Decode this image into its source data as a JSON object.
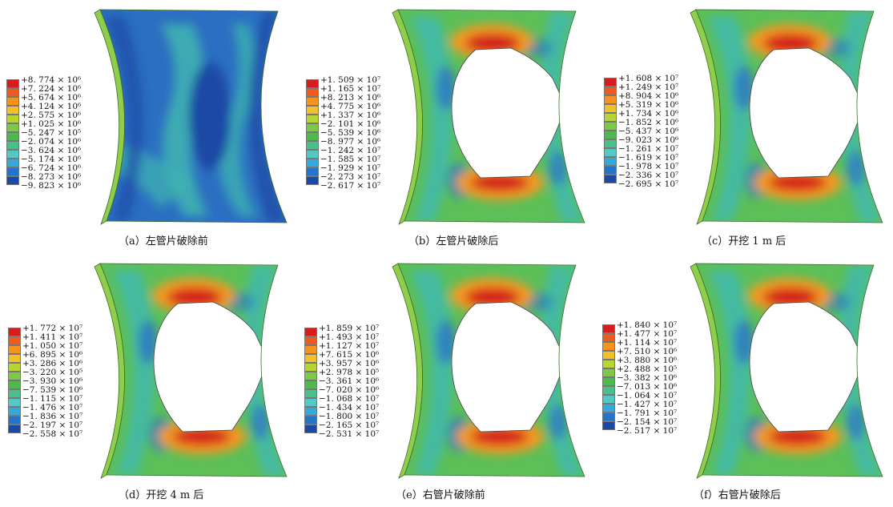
{
  "legend_colors": [
    "#d81b1b",
    "#ef5a1e",
    "#f7921f",
    "#f2c12a",
    "#b7d535",
    "#7cc943",
    "#4fb84f",
    "#46c18a",
    "#52c9c4",
    "#34a9de",
    "#2474cc",
    "#1a4aa8"
  ],
  "panels": [
    {
      "id": "a",
      "caption": "（a）左管片破除前",
      "hole": false,
      "legend": [
        "+8. 774 × 10⁶",
        "+7. 224 × 10⁶",
        "+5. 674 × 10⁶",
        "+4. 124 × 10⁶",
        "+2. 575 × 10⁶",
        "+1. 025 × 10⁶",
        "−5. 247 × 10⁵",
        "−2. 074 × 10⁶",
        "−3. 624 × 10⁶",
        "−5. 174 × 10⁶",
        "−6. 724 × 10⁶",
        "−8. 273 × 10⁶",
        "−9. 823 × 10⁶"
      ]
    },
    {
      "id": "b",
      "caption": "（b）左管片破除后",
      "hole": true,
      "legend": [
        "+1. 509 × 10⁷",
        "+1. 165 × 10⁷",
        "+8. 213 × 10⁶",
        "+4. 775 × 10⁶",
        "+1. 337 × 10⁶",
        "−2. 101 × 10⁶",
        "−5. 539 × 10⁶",
        "−8. 977 × 10⁶",
        "−1. 242 × 10⁷",
        "−1. 585 × 10⁷",
        "−1. 929 × 10⁷",
        "−2. 273 × 10⁷",
        "−2. 617 × 10⁷"
      ]
    },
    {
      "id": "c",
      "caption": "（c）开挖 1 m 后",
      "hole": true,
      "legend": [
        "+1. 608 × 10⁷",
        "+1. 249 × 10⁷",
        "+8. 904 × 10⁶",
        "+5. 319 × 10⁶",
        "+1. 734 × 10⁶",
        "−1. 852 × 10⁶",
        "−5. 437 × 10⁶",
        "−9. 023 × 10⁶",
        "−1. 261 × 10⁷",
        "−1. 619 × 10⁷",
        "−1. 978 × 10⁷",
        "−2. 336 × 10⁷",
        "−2. 695 × 10⁷"
      ]
    },
    {
      "id": "d",
      "caption": "（d）开挖 4 m 后",
      "hole": true,
      "legend": [
        "+1. 772 × 10⁷",
        "+1. 411 × 10⁷",
        "+1. 050 × 10⁷",
        "+6. 895 × 10⁶",
        "+3. 286 × 10⁶",
        "−3. 220 × 10⁵",
        "−3. 930 × 10⁶",
        "−7. 539 × 10⁶",
        "−1. 115 × 10⁷",
        "−1. 476 × 10⁷",
        "−1. 836 × 10⁷",
        "−2. 197 × 10⁷",
        "−2. 558 × 10⁷"
      ]
    },
    {
      "id": "e",
      "caption": "（e）右管片破除前",
      "hole": true,
      "legend": [
        "+1. 859 × 10⁷",
        "+1. 493 × 10⁷",
        "+1. 127 × 10⁷",
        "+7. 615 × 10⁶",
        "+3. 957 × 10⁶",
        "+2. 978 × 10⁵",
        "−3. 361 × 10⁶",
        "−7. 020 × 10⁶",
        "−1. 068 × 10⁷",
        "−1. 434 × 10⁷",
        "−1. 800 × 10⁷",
        "−2. 165 × 10⁷",
        "−2. 531 × 10⁷"
      ]
    },
    {
      "id": "f",
      "caption": "（f）右管片破除后",
      "hole": true,
      "legend": [
        "+1. 840 × 10⁷",
        "+1. 477 × 10⁷",
        "+1. 114 × 10⁷",
        "+7. 510 × 10⁶",
        "+3. 880 × 10⁶",
        "+2. 488 × 10⁵",
        "−3. 382 × 10⁶",
        "−7. 013 × 10⁶",
        "−1. 064 × 10⁷",
        "−1. 427 × 10⁷",
        "−1. 791 × 10⁷",
        "−2. 154 × 10⁷",
        "−2. 517 × 10⁷"
      ]
    }
  ]
}
